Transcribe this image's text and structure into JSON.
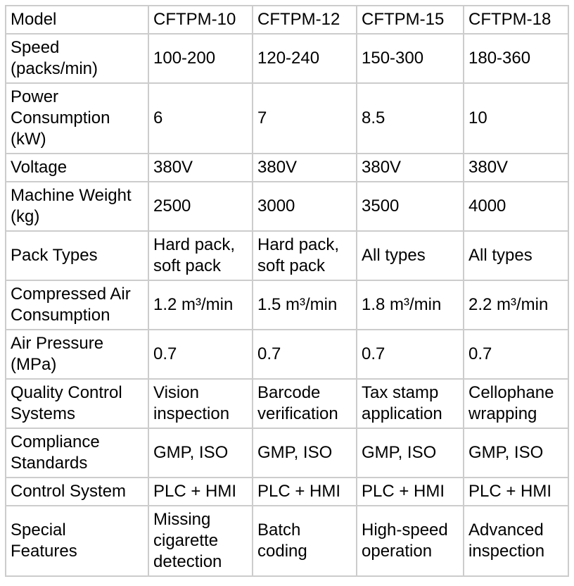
{
  "table": {
    "rows": [
      [
        "Model",
        "CFTPM-10",
        "CFTPM-12",
        "CFTPM-15",
        "CFTPM-18"
      ],
      [
        "Speed\n(packs/min)",
        "100-200",
        "120-240",
        "150-300",
        "180-360"
      ],
      [
        "Power\nConsumption\n(kW)",
        "6",
        "7",
        "8.5",
        "10"
      ],
      [
        "Voltage",
        "380V",
        "380V",
        "380V",
        "380V"
      ],
      [
        "Machine Weight\n(kg)",
        "2500",
        "3000",
        "3500",
        "4000"
      ],
      [
        "Pack Types",
        "Hard pack,\nsoft pack",
        "Hard pack,\nsoft pack",
        "All types",
        "All types"
      ],
      [
        "Compressed Air\nConsumption",
        "1.2 m³/min",
        "1.5 m³/min",
        "1.8 m³/min",
        "2.2 m³/min"
      ],
      [
        "Air Pressure\n(MPa)",
        "0.7",
        "0.7",
        "0.7",
        "0.7"
      ],
      [
        "Quality Control\nSystems",
        "Vision\ninspection",
        "Barcode\nverification",
        "Tax stamp\napplication",
        "Cellophane\nwrapping"
      ],
      [
        "Compliance\nStandards",
        "GMP, ISO",
        "GMP, ISO",
        "GMP, ISO",
        "GMP, ISO"
      ],
      [
        "Control System",
        "PLC + HMI",
        "PLC + HMI",
        "PLC + HMI",
        "PLC + HMI"
      ],
      [
        "Special\nFeatures",
        "Missing\ncigarette\ndetection",
        "Batch\ncoding",
        "High-speed\noperation",
        "Advanced\ninspection"
      ]
    ]
  }
}
